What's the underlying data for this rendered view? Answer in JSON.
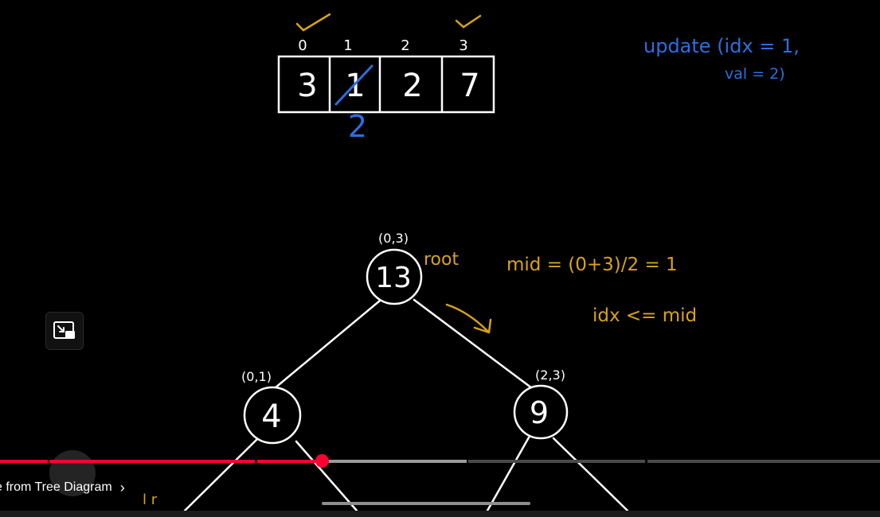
{
  "array": {
    "indices": [
      "0",
      "1",
      "2",
      "3"
    ],
    "values": [
      "3",
      "1",
      "2",
      "7"
    ],
    "updated_value": "2"
  },
  "update_call": {
    "line1": "update (idx = 1,",
    "line2": "val = 2)"
  },
  "tree": {
    "root": {
      "value": "13",
      "range": "(0,3)",
      "label": "root"
    },
    "left": {
      "value": "4",
      "range": "(0,1)"
    },
    "right": {
      "value": "9",
      "range": "(2,3)"
    }
  },
  "notes": {
    "mid": "mid = (0+3)/2 = 1",
    "cond": "idx <= mid",
    "partial": "l r"
  },
  "player": {
    "chapter_title": "e from Tree Diagram",
    "progress_fraction": 0.366
  },
  "colors": {
    "background": "#000000",
    "chalk": "#ffffff",
    "blue_ink": "#2b6fe0",
    "gold_ink": "#d9a21b",
    "progress_red": "#ff0033"
  }
}
